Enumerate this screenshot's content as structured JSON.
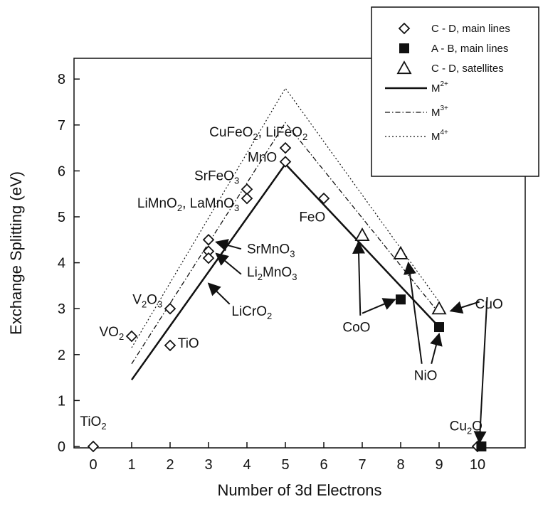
{
  "chart_data": {
    "type": "scatter",
    "xlabel": "Number of 3d Electrons",
    "ylabel": "Exchange Splitting (eV)",
    "xlim": [
      -1,
      11
    ],
    "ylim": [
      0,
      8.4
    ],
    "xticks": [
      0,
      1,
      2,
      3,
      4,
      5,
      6,
      7,
      8,
      9,
      10
    ],
    "yticks": [
      0,
      1,
      2,
      3,
      4,
      5,
      6,
      7,
      8
    ],
    "grid": false,
    "legend_position": "top-right",
    "legend": [
      {
        "key": "cd_main",
        "label": "C - D, main lines",
        "marker": "diamond-open"
      },
      {
        "key": "ab_main",
        "label": "A - B, main lines",
        "marker": "square-filled"
      },
      {
        "key": "cd_sat",
        "label": "C - D, satellites",
        "marker": "triangle-open"
      },
      {
        "key": "m2",
        "label": "M2+",
        "base": "M",
        "sup": "2+",
        "line": "solid"
      },
      {
        "key": "m3",
        "label": "M3+",
        "base": "M",
        "sup": "3+",
        "line": "dashdot"
      },
      {
        "key": "m4",
        "label": "M4+",
        "base": "M",
        "sup": "4+",
        "line": "dotted"
      }
    ],
    "points": {
      "cd_main": [
        {
          "x": 0,
          "y": 0
        },
        {
          "x": 1,
          "y": 2.4
        },
        {
          "x": 2,
          "y": 3.0
        },
        {
          "x": 2,
          "y": 2.2
        },
        {
          "x": 3,
          "y": 4.5
        },
        {
          "x": 3,
          "y": 4.25
        },
        {
          "x": 3,
          "y": 4.1
        },
        {
          "x": 4,
          "y": 5.6
        },
        {
          "x": 4,
          "y": 5.4
        },
        {
          "x": 5,
          "y": 6.5
        },
        {
          "x": 5,
          "y": 6.2
        },
        {
          "x": 6,
          "y": 5.4
        },
        {
          "x": 10,
          "y": 0
        }
      ],
      "ab_main": [
        {
          "x": 8,
          "y": 3.2
        },
        {
          "x": 9,
          "y": 2.6
        },
        {
          "x": 10.1,
          "y": 0
        }
      ],
      "cd_sat": [
        {
          "x": 7,
          "y": 4.6
        },
        {
          "x": 8,
          "y": 4.2
        },
        {
          "x": 9,
          "y": 3.0
        }
      ]
    },
    "series": [
      {
        "key": "m2",
        "x": [
          1,
          5,
          9
        ],
        "y": [
          1.45,
          6.15,
          2.6
        ]
      },
      {
        "key": "m3",
        "x": [
          1,
          5,
          9
        ],
        "y": [
          1.8,
          7.05,
          2.9
        ]
      },
      {
        "key": "m4",
        "x": [
          1,
          5,
          9
        ],
        "y": [
          2.15,
          7.8,
          3.15
        ]
      }
    ],
    "annotations": [
      {
        "base": "TiO",
        "sub": "2",
        "x": 0,
        "y": 0.45,
        "anchor": "middle"
      },
      {
        "base": "VO",
        "sub": "2",
        "x": 0.8,
        "y": 2.4,
        "anchor": "end"
      },
      {
        "base": "V",
        "sub": "2",
        "mid": "O",
        "sub2": "3",
        "x": 1.8,
        "y": 3.1,
        "anchor": "end"
      },
      {
        "text": "TiO",
        "x": 2.2,
        "y": 2.15,
        "anchor": "start"
      },
      {
        "base": "SrMnO",
        "sub": "3",
        "x": 4.0,
        "y": 4.2,
        "anchor": "start"
      },
      {
        "base": "Li",
        "sub": "2",
        "mid": "MnO",
        "sub2": "3",
        "x": 4.0,
        "y": 3.7,
        "anchor": "start"
      },
      {
        "base": "LiCrO",
        "sub": "2",
        "x": 3.6,
        "y": 2.85,
        "anchor": "start"
      },
      {
        "base": "LiMnO",
        "sub": "2",
        "mid": ", LaMnO",
        "sub2": "3",
        "x": 3.8,
        "y": 5.2,
        "anchor": "end"
      },
      {
        "base": "SrFeO",
        "sub": "3",
        "x": 3.8,
        "y": 5.8,
        "anchor": "end"
      },
      {
        "base": "CuFeO",
        "sub": "2",
        "mid": ", LiFeO",
        "sub2": "2",
        "x": 4.3,
        "y": 6.75,
        "anchor": "middle"
      },
      {
        "text": "MnO",
        "x": 4.4,
        "y": 6.2,
        "anchor": "middle"
      },
      {
        "text": "FeO",
        "x": 5.7,
        "y": 4.9,
        "anchor": "middle"
      },
      {
        "text": "CoO",
        "x": 6.85,
        "y": 2.5,
        "anchor": "middle"
      },
      {
        "text": "NiO",
        "x": 8.65,
        "y": 1.45,
        "anchor": "middle"
      },
      {
        "text": "CuO",
        "x": 10.3,
        "y": 3.0,
        "anchor": "middle"
      },
      {
        "base": "Cu",
        "sub": "2",
        "mid": "O",
        "x": 9.7,
        "y": 0.35,
        "anchor": "middle"
      }
    ],
    "arrows": [
      {
        "from": [
          3.85,
          4.3
        ],
        "to": [
          3.2,
          4.45
        ]
      },
      {
        "from": [
          3.85,
          3.75
        ],
        "to": [
          3.2,
          4.2
        ]
      },
      {
        "from": [
          3.55,
          3.1
        ],
        "to": [
          3.0,
          3.55
        ]
      },
      {
        "from": [
          6.95,
          2.85
        ],
        "to": [
          6.9,
          4.45
        ]
      },
      {
        "from": [
          7.0,
          2.9
        ],
        "to": [
          7.85,
          3.2
        ]
      },
      {
        "from": [
          8.55,
          1.8
        ],
        "to": [
          8.2,
          4.0
        ]
      },
      {
        "from": [
          8.8,
          1.8
        ],
        "to": [
          9.0,
          2.45
        ]
      },
      {
        "from": [
          10.05,
          3.15
        ],
        "to": [
          9.3,
          2.95
        ]
      },
      {
        "from": [
          10.25,
          3.25
        ],
        "to": [
          10.05,
          0.08
        ]
      }
    ]
  }
}
